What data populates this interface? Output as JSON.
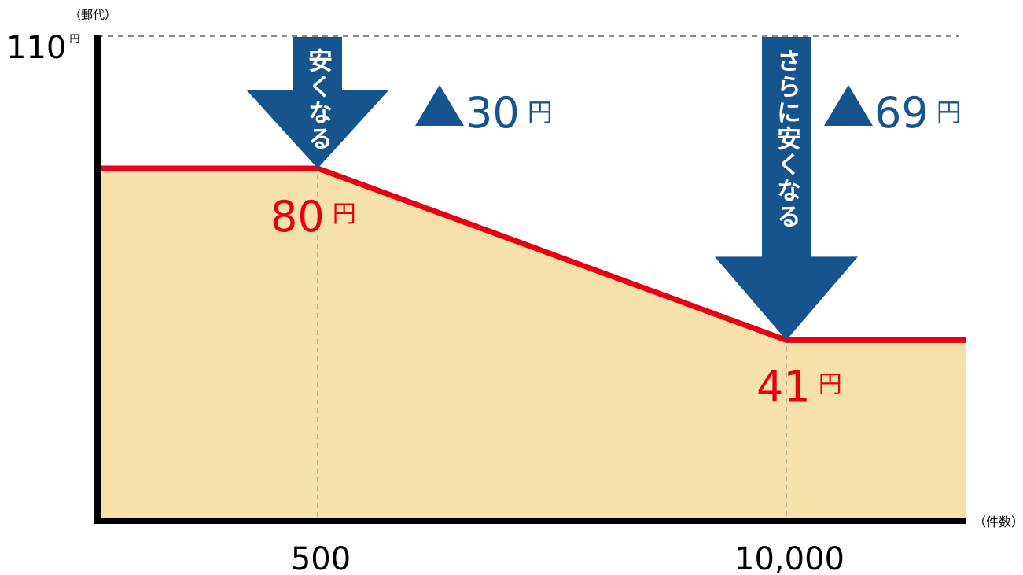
{
  "chart_data": {
    "type": "area",
    "ylabel": "（郵代）",
    "xlabel": "（件数）",
    "y_top_tick": {
      "value": 110,
      "number": "110",
      "unit": "円"
    },
    "x_ticks": [
      {
        "x": 500,
        "label": "500"
      },
      {
        "x": 10000,
        "label": "10,000"
      }
    ],
    "series": [
      {
        "points": [
          {
            "x": 0,
            "y": 80
          },
          {
            "x": 500,
            "y": 80
          },
          {
            "x": 10000,
            "y": 41
          },
          {
            "x": 13500,
            "y": 41
          }
        ]
      }
    ],
    "value_labels": [
      {
        "x": 500,
        "y": 80,
        "number": "80",
        "unit": "円"
      },
      {
        "x": 10000,
        "y": 41,
        "number": "41",
        "unit": "円"
      }
    ],
    "annotations": [
      {
        "x": 500,
        "arrow_text": "安くなる",
        "delta_number": "30",
        "delta_unit": "円",
        "delta_mark": "▲"
      },
      {
        "x": 10000,
        "arrow_text": "さらに安くなる",
        "delta_number": "69",
        "delta_unit": "円",
        "delta_mark": "▲"
      }
    ],
    "ylim": [
      0,
      110
    ],
    "colors": {
      "line": "#e60012",
      "fill": "#f7e1aa",
      "arrow": "#16548e",
      "axis": "#000000",
      "value_label": "#e60012",
      "delta_label": "#16548e"
    }
  }
}
